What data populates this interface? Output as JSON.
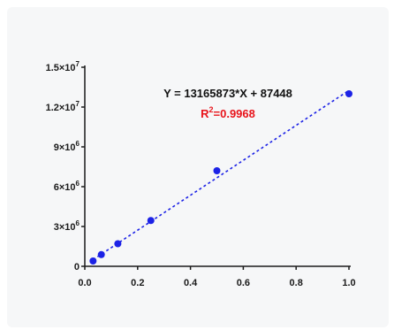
{
  "chart_data": {
    "type": "scatter",
    "x": [
      0.03125,
      0.0625,
      0.125,
      0.25,
      0.5,
      1.0
    ],
    "y": [
      400000,
      880000,
      1700000,
      3450000,
      7200000,
      13000000
    ],
    "xlim": [
      0,
      1.0
    ],
    "ylim": [
      0,
      15000000
    ],
    "x_ticks": [
      {
        "value": 0.0,
        "label": "0.0"
      },
      {
        "value": 0.2,
        "label": "0.2"
      },
      {
        "value": 0.4,
        "label": "0.4"
      },
      {
        "value": 0.6,
        "label": "0.6"
      },
      {
        "value": 0.8,
        "label": "0.8"
      },
      {
        "value": 1.0,
        "label": "1.0"
      }
    ],
    "y_ticks": [
      {
        "value": 0,
        "base": "0",
        "exp": ""
      },
      {
        "value": 3000000,
        "base": "3×10",
        "exp": "6"
      },
      {
        "value": 6000000,
        "base": "6×10",
        "exp": "6"
      },
      {
        "value": 9000000,
        "base": "9×10",
        "exp": "6"
      },
      {
        "value": 12000000,
        "base": "1.2×10",
        "exp": "7"
      },
      {
        "value": 15000000,
        "base": "1.5×10",
        "exp": "7"
      }
    ],
    "fit": {
      "slope": 13165873,
      "intercept": 87448
    },
    "equation": "Y = 13165873*X + 87448",
    "r2_prefix": "R",
    "r2_exp": "2",
    "r2_value": "=0.9968",
    "grid": false
  },
  "colors": {
    "points": "#1c22e6",
    "fit_line": "#1c22e6",
    "r2_text": "#e8141b",
    "axis": "#1a1a1a"
  }
}
